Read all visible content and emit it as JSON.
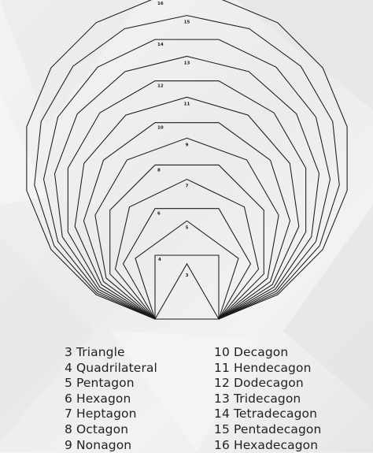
{
  "polygons": [
    {
      "sides": 3,
      "label": "3",
      "name": "Triangle"
    },
    {
      "sides": 4,
      "label": "4",
      "name": "Quadrilateral"
    },
    {
      "sides": 5,
      "label": "5",
      "name": "Pentagon"
    },
    {
      "sides": 6,
      "label": "6",
      "name": "Hexagon"
    },
    {
      "sides": 7,
      "label": "7",
      "name": "Heptagon"
    },
    {
      "sides": 8,
      "label": "8",
      "name": "Octagon"
    },
    {
      "sides": 9,
      "label": "9",
      "name": "Nonagon"
    },
    {
      "sides": 10,
      "label": "10",
      "name": "Decagon"
    },
    {
      "sides": 11,
      "label": "11",
      "name": "Hendecagon"
    },
    {
      "sides": 12,
      "label": "12",
      "name": "Dodecagon"
    },
    {
      "sides": 13,
      "label": "13",
      "name": "Tridecagon"
    },
    {
      "sides": 14,
      "label": "14",
      "name": "Tetradecagon"
    },
    {
      "sides": 15,
      "label": "15",
      "name": "Pentadecagon"
    },
    {
      "sides": 16,
      "label": "16",
      "name": "Hexadecagon"
    }
  ],
  "legend": {
    "left": [
      "3 Triangle",
      "4 Quadrilateral",
      "5 Pentagon",
      "6 Hexagon",
      "7 Heptagon",
      "8 Octagon",
      "9 Nonagon"
    ],
    "right": [
      "10 Decagon",
      "11 Hendecagon",
      "12 Dodecagon",
      "13 Tridecagon",
      "14 Tetradecagon",
      "15 Pentadecagon",
      "16 Hexadecagon"
    ]
  },
  "colors": {
    "stroke": "#1a1a1a",
    "background": "#efefef"
  }
}
